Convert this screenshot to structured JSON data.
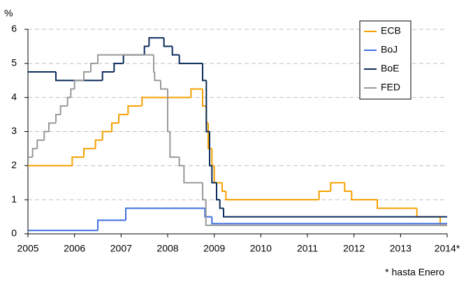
{
  "chart_data": {
    "type": "line",
    "step": "post",
    "y_label": "%",
    "footnote": "* hasta Enero",
    "xlim": [
      2005,
      2014
    ],
    "ylim": [
      0,
      6
    ],
    "xticks": [
      2005,
      2006,
      2007,
      2008,
      2009,
      2010,
      2011,
      2012,
      2013,
      {
        "value": 2014,
        "label": "2014*"
      }
    ],
    "yticks": [
      0,
      1,
      2,
      3,
      4,
      5,
      6
    ],
    "grid": true,
    "legend": "top-right",
    "series": [
      {
        "name": "ECB",
        "color": "#f5a000",
        "x": [
          2005,
          2005.95,
          2006.2,
          2006.45,
          2006.6,
          2006.8,
          2006.95,
          2007.15,
          2007.45,
          2008.5,
          2008.75,
          2008.83,
          2008.87,
          2008.95,
          2009.0,
          2009.17,
          2009.25,
          2009.35,
          2011.25,
          2011.5,
          2011.8,
          2011.95,
          2012.5,
          2013.35,
          2013.85
        ],
        "values": [
          2.0,
          2.25,
          2.5,
          2.75,
          3.0,
          3.25,
          3.5,
          3.75,
          4.0,
          4.25,
          3.75,
          3.25,
          2.5,
          2.0,
          1.5,
          1.25,
          1.0,
          1.0,
          1.25,
          1.5,
          1.25,
          1.0,
          0.75,
          0.5,
          0.25
        ]
      },
      {
        "name": "BoJ",
        "color": "#3f6fe0",
        "x": [
          2005,
          2006.5,
          2007.1,
          2008.8,
          2008.95
        ],
        "values": [
          0.1,
          0.4,
          0.75,
          0.5,
          0.3
        ]
      },
      {
        "name": "BoE",
        "color": "#0a2a5a",
        "x": [
          2005,
          2005.6,
          2006.6,
          2006.85,
          2007.05,
          2007.5,
          2007.6,
          2007.92,
          2008.1,
          2008.25,
          2008.75,
          2008.83,
          2008.9,
          2008.95,
          2009.05,
          2009.12,
          2009.2
        ],
        "values": [
          4.75,
          4.5,
          4.75,
          5.0,
          5.25,
          5.5,
          5.75,
          5.5,
          5.25,
          5.0,
          4.5,
          3.0,
          2.0,
          1.5,
          1.0,
          0.75,
          0.5
        ]
      },
      {
        "name": "FED",
        "color": "#999999",
        "x": [
          2005,
          2005.1,
          2005.2,
          2005.35,
          2005.45,
          2005.6,
          2005.7,
          2005.85,
          2005.92,
          2006.0,
          2006.2,
          2006.35,
          2006.5,
          2007.7,
          2007.72,
          2007.85,
          2008.0,
          2008.05,
          2008.25,
          2008.35,
          2008.75,
          2008.82,
          2008.95
        ],
        "values": [
          2.25,
          2.5,
          2.75,
          3.0,
          3.25,
          3.5,
          3.75,
          4.0,
          4.25,
          4.5,
          4.75,
          5.0,
          5.25,
          4.75,
          4.5,
          4.25,
          3.0,
          2.25,
          2.0,
          1.5,
          1.0,
          0.25,
          0.25
        ]
      }
    ]
  }
}
